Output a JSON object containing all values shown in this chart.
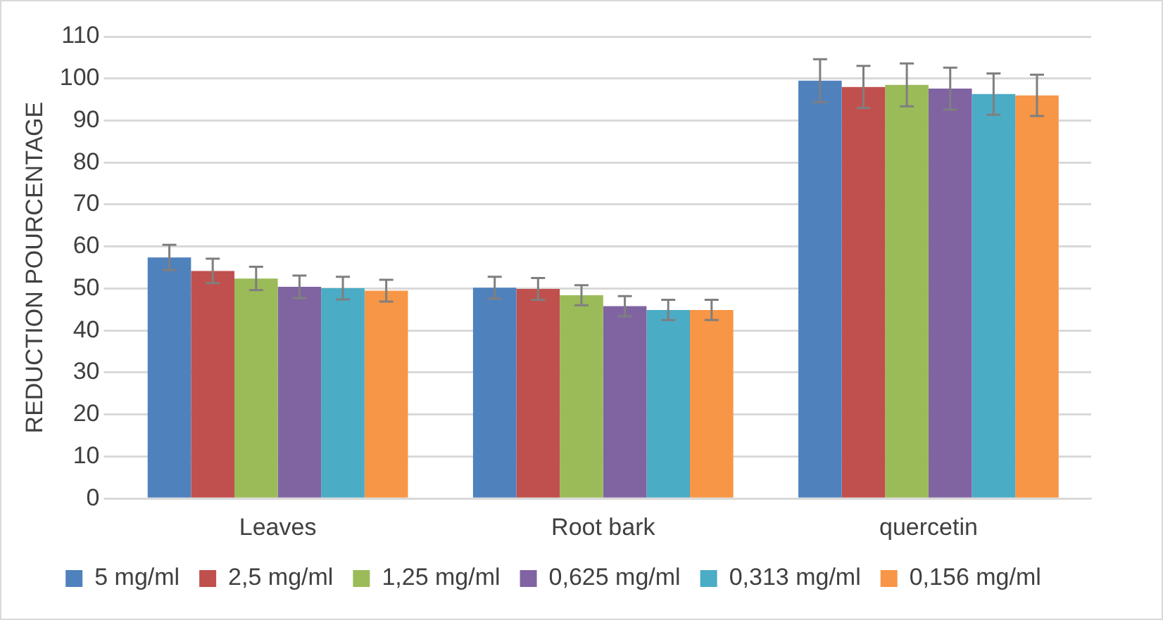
{
  "chart_data": {
    "type": "bar",
    "ylabel": "REDUCTION POURCENTAGE",
    "categories": [
      "Leaves",
      "Root bark",
      "quercetin"
    ],
    "ylim": [
      0,
      110
    ],
    "yticks": [
      0,
      10,
      20,
      30,
      40,
      50,
      60,
      70,
      80,
      90,
      100,
      110
    ],
    "grid": "y",
    "legend": "bottom",
    "series": [
      {
        "name": "5 mg/ml",
        "color": "#4f81bd",
        "values": [
          57.4,
          50.2,
          99.5
        ],
        "errors": [
          3,
          2.6,
          5.1
        ]
      },
      {
        "name": "2,5 mg/ml",
        "color": "#c0504d",
        "values": [
          54.2,
          49.9,
          98
        ],
        "errors": [
          2.9,
          2.6,
          5
        ]
      },
      {
        "name": "1,25 mg/ml",
        "color": "#9bbb59",
        "values": [
          52.4,
          48.4,
          98.5
        ],
        "errors": [
          2.8,
          2.4,
          5.1
        ]
      },
      {
        "name": "0,625 mg/ml",
        "color": "#8064a2",
        "values": [
          50.4,
          45.8,
          97.6
        ],
        "errors": [
          2.7,
          2.4,
          5
        ]
      },
      {
        "name": "0,313 mg/ml",
        "color": "#4bacc6",
        "values": [
          50.1,
          44.9,
          96.3
        ],
        "errors": [
          2.7,
          2.4,
          4.9
        ]
      },
      {
        "name": "0,156 mg/ml",
        "color": "#f79646",
        "values": [
          49.5,
          44.9,
          96
        ],
        "errors": [
          2.6,
          2.4,
          4.9
        ]
      }
    ]
  }
}
